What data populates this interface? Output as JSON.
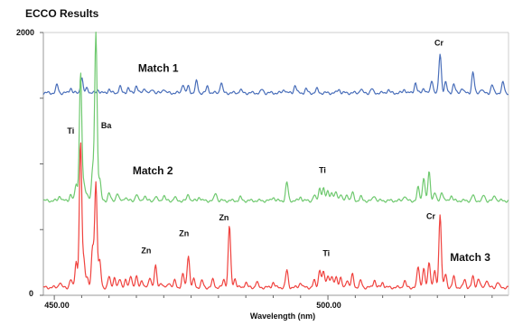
{
  "chart_data": {
    "type": "line",
    "title": "ECCO Results",
    "xlabel": "Wavelength (nm)",
    "ylabel": "",
    "xlim": [
      448,
      533
    ],
    "ylim": [
      0,
      2000
    ],
    "x_ticks": [
      "450.00",
      "500.00"
    ],
    "y_ticks": [
      "0",
      "2000"
    ],
    "grid": false,
    "legend": "none",
    "series": [
      {
        "name": "Match 1",
        "color": "#4a6fba",
        "baseline": 1540,
        "peaks": [
          [
            450.5,
            60
          ],
          [
            453.0,
            40
          ],
          [
            455.0,
            120
          ],
          [
            456.0,
            40
          ],
          [
            458.0,
            25
          ],
          [
            460.0,
            30
          ],
          [
            462.0,
            50
          ],
          [
            463.5,
            40
          ],
          [
            465.0,
            60
          ],
          [
            466.5,
            40
          ],
          [
            468.0,
            30
          ],
          [
            470.0,
            35
          ],
          [
            473.5,
            70
          ],
          [
            474.5,
            50
          ],
          [
            476.0,
            90
          ],
          [
            478.0,
            50
          ],
          [
            480.5,
            80
          ],
          [
            484.0,
            25
          ],
          [
            488.0,
            25
          ],
          [
            492.0,
            30
          ],
          [
            494.0,
            60
          ],
          [
            496.0,
            30
          ],
          [
            498.0,
            30
          ],
          [
            502.0,
            30
          ],
          [
            506.0,
            30
          ],
          [
            508.0,
            30
          ],
          [
            511.0,
            25
          ],
          [
            514.0,
            30
          ],
          [
            516.0,
            80
          ],
          [
            517.5,
            40
          ],
          [
            519.0,
            100
          ],
          [
            520.5,
            300
          ],
          [
            521.5,
            80
          ],
          [
            523.0,
            70
          ],
          [
            524.5,
            40
          ],
          [
            526.5,
            160
          ],
          [
            528.0,
            30
          ],
          [
            530.0,
            60
          ],
          [
            532.0,
            80
          ]
        ]
      },
      {
        "name": "Match 2",
        "color": "#6fc96f",
        "baseline": 720,
        "peaks": [
          [
            451.0,
            40
          ],
          [
            453.0,
            50
          ],
          [
            454.0,
            130
          ],
          [
            454.8,
            980
          ],
          [
            455.4,
            120
          ],
          [
            456.0,
            60
          ],
          [
            457.0,
            220
          ],
          [
            457.6,
            1280
          ],
          [
            458.3,
            160
          ],
          [
            460.0,
            60
          ],
          [
            461.5,
            60
          ],
          [
            463.0,
            30
          ],
          [
            465.0,
            50
          ],
          [
            466.5,
            40
          ],
          [
            468.5,
            30
          ],
          [
            470.0,
            40
          ],
          [
            472.0,
            25
          ],
          [
            474.5,
            50
          ],
          [
            476.5,
            30
          ],
          [
            479.5,
            60
          ],
          [
            484.0,
            25
          ],
          [
            490.0,
            30
          ],
          [
            492.5,
            140
          ],
          [
            495.0,
            30
          ],
          [
            497.5,
            40
          ],
          [
            498.5,
            100
          ],
          [
            499.2,
            90
          ],
          [
            500.0,
            80
          ],
          [
            500.7,
            60
          ],
          [
            501.5,
            70
          ],
          [
            502.3,
            50
          ],
          [
            503.5,
            50
          ],
          [
            504.5,
            60
          ],
          [
            506.0,
            30
          ],
          [
            508.5,
            40
          ],
          [
            514.0,
            40
          ],
          [
            516.5,
            100
          ],
          [
            517.5,
            180
          ],
          [
            518.5,
            220
          ],
          [
            519.5,
            60
          ],
          [
            520.8,
            70
          ],
          [
            522.5,
            40
          ],
          [
            526.5,
            40
          ],
          [
            528.5,
            40
          ],
          [
            530.5,
            40
          ]
        ]
      },
      {
        "name": "Match 3",
        "color": "#f0433f",
        "baseline": 60,
        "peaks": [
          [
            451.0,
            40
          ],
          [
            453.0,
            60
          ],
          [
            454.0,
            200
          ],
          [
            454.8,
            1100
          ],
          [
            455.4,
            200
          ],
          [
            456.0,
            80
          ],
          [
            457.0,
            300
          ],
          [
            457.6,
            800
          ],
          [
            458.3,
            200
          ],
          [
            460.0,
            80
          ],
          [
            461.0,
            80
          ],
          [
            462.0,
            60
          ],
          [
            463.0,
            60
          ],
          [
            464.0,
            90
          ],
          [
            465.0,
            80
          ],
          [
            466.0,
            60
          ],
          [
            467.5,
            80
          ],
          [
            468.5,
            160
          ],
          [
            469.5,
            40
          ],
          [
            471.0,
            40
          ],
          [
            472.0,
            50
          ],
          [
            473.5,
            100
          ],
          [
            474.5,
            250
          ],
          [
            475.5,
            60
          ],
          [
            477.0,
            50
          ],
          [
            479.0,
            60
          ],
          [
            481.0,
            60
          ],
          [
            482.0,
            470
          ],
          [
            483.0,
            70
          ],
          [
            485.0,
            40
          ],
          [
            487.0,
            40
          ],
          [
            490.0,
            40
          ],
          [
            492.5,
            130
          ],
          [
            495.0,
            40
          ],
          [
            497.5,
            50
          ],
          [
            498.5,
            140
          ],
          [
            499.2,
            120
          ],
          [
            500.0,
            100
          ],
          [
            500.7,
            80
          ],
          [
            501.5,
            90
          ],
          [
            502.3,
            70
          ],
          [
            503.5,
            60
          ],
          [
            504.5,
            100
          ],
          [
            506.0,
            50
          ],
          [
            508.5,
            60
          ],
          [
            510.0,
            40
          ],
          [
            514.0,
            50
          ],
          [
            516.5,
            160
          ],
          [
            517.5,
            140
          ],
          [
            518.5,
            200
          ],
          [
            519.5,
            120
          ],
          [
            520.5,
            560
          ],
          [
            521.5,
            100
          ],
          [
            523.0,
            80
          ],
          [
            525.0,
            60
          ],
          [
            526.5,
            80
          ],
          [
            527.5,
            70
          ],
          [
            529.0,
            60
          ],
          [
            531.0,
            40
          ]
        ]
      }
    ],
    "annotations": [
      {
        "text": "Match 1",
        "x": 469,
        "y": 1700,
        "bold": true,
        "size": "large"
      },
      {
        "text": "Match 2",
        "x": 468,
        "y": 920,
        "bold": true,
        "size": "large"
      },
      {
        "text": "Match 3",
        "x": 526,
        "y": 260,
        "bold": true,
        "size": "large"
      },
      {
        "text": "Cr",
        "x": 520.3,
        "y": 1900
      },
      {
        "text": "Ti",
        "x": 453.0,
        "y": 1230
      },
      {
        "text": "Ba",
        "x": 459.5,
        "y": 1270
      },
      {
        "text": "Ti",
        "x": 499.0,
        "y": 930
      },
      {
        "text": "Zn",
        "x": 466.8,
        "y": 320
      },
      {
        "text": "Zn",
        "x": 473.7,
        "y": 450
      },
      {
        "text": "Zn",
        "x": 481.0,
        "y": 570
      },
      {
        "text": "Cr",
        "x": 518.8,
        "y": 580
      },
      {
        "text": "Ti",
        "x": 499.7,
        "y": 300
      }
    ]
  }
}
